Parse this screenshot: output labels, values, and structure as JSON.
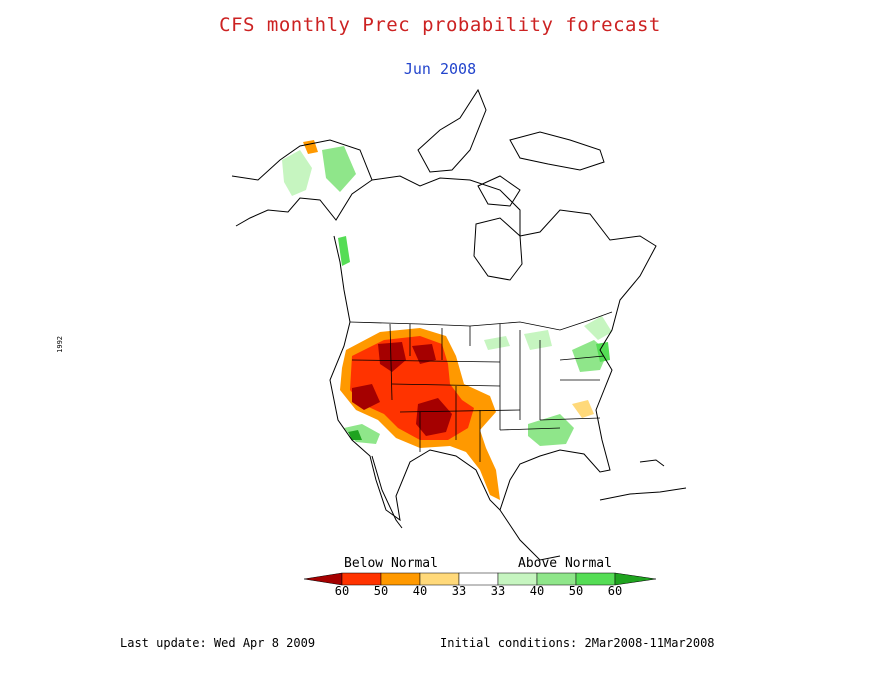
{
  "title": "CFS monthly Prec probability forecast",
  "subtitle": "Jun 2008",
  "legend": {
    "below_label": "Below Normal",
    "above_label": "Above Normal",
    "ticks": [
      "60",
      "50",
      "40",
      "33",
      "33",
      "40",
      "50",
      "60"
    ],
    "colors": [
      "#a50000",
      "#ff3300",
      "#ff9900",
      "#ffd97a",
      "#ffffff",
      "#c6f5c0",
      "#8fe68a",
      "#55dd55",
      "#1fa31f"
    ]
  },
  "footer": {
    "last_update": "Last update: Wed Apr 8 2009",
    "initial_conditions": "Initial conditions: 2Mar2008-11Mar2008"
  },
  "side_mark": "1992"
}
